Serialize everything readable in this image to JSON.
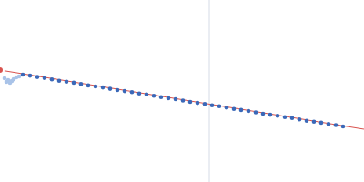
{
  "chart_data": {
    "type": "scatter",
    "xlim": [
      0,
      400
    ],
    "ylim": [
      0,
      200
    ],
    "tick_labels": false,
    "grid": false,
    "vline": 230,
    "series": [
      {
        "type": "line",
        "color": "#d9534f",
        "x": [
          0,
          400
        ],
        "values": [
          123,
          58
        ]
      },
      {
        "type": "scatter",
        "color": "#a9c3e8",
        "marker": "circle",
        "x": [
          5,
          7,
          9,
          11,
          13,
          15,
          18,
          21
        ],
        "values": [
          114,
          110,
          112,
          109,
          111,
          113,
          115,
          116
        ]
      },
      {
        "type": "scatter",
        "color": "#3a68b8",
        "marker": "circle",
        "x": [
          25,
          33,
          41,
          49,
          57,
          65,
          73,
          81,
          89,
          97,
          105,
          113,
          121,
          129,
          137,
          145,
          153,
          161,
          169,
          177,
          185,
          193,
          201,
          209,
          217,
          225,
          233,
          241,
          249,
          257,
          265,
          273,
          281,
          289,
          297,
          305,
          313,
          321,
          329,
          337,
          345,
          353,
          361,
          369,
          377
        ],
        "values": [
          118.0,
          116.9,
          115.4,
          114.3,
          112.8,
          111.2,
          110.2,
          109.1,
          107.6,
          106.1,
          105.0,
          103.9,
          102.4,
          101.0,
          99.9,
          98.8,
          97.3,
          96.2,
          94.7,
          93.2,
          92.1,
          91.0,
          89.5,
          88.0,
          86.9,
          85.8,
          84.3,
          83.2,
          81.7,
          80.2,
          79.1,
          78.0,
          76.5,
          75.0,
          73.9,
          72.8,
          71.3,
          70.2,
          68.8,
          67.3,
          66.2,
          65.1,
          63.6,
          62.5,
          61.0
        ]
      }
    ]
  }
}
